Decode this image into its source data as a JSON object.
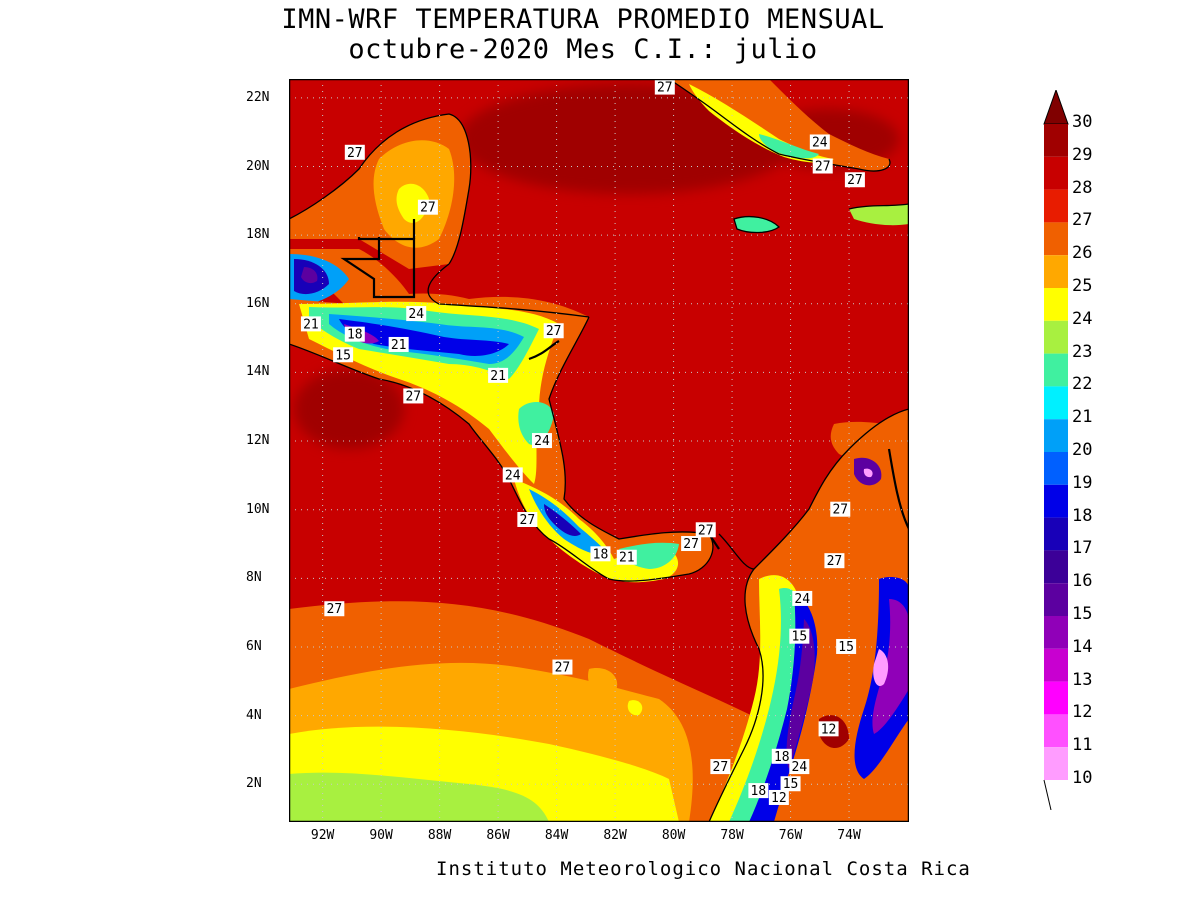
{
  "title_line1": "IMN-WRF  TEMPERATURA PROMEDIO MENSUAL",
  "title_line2": "octubre-2020 Mes C.I.: julio",
  "footer": "Instituto Meteorologico Nacional Costa Rica",
  "lat_labels": [
    "22N",
    "20N",
    "18N",
    "16N",
    "14N",
    "12N",
    "10N",
    "8N",
    "6N",
    "4N",
    "2N"
  ],
  "lon_labels": [
    "92W",
    "90W",
    "88W",
    "86W",
    "84W",
    "82W",
    "80W",
    "78W",
    "76W",
    "74W"
  ],
  "colorbar": {
    "levels": [
      "30",
      "29",
      "28",
      "27",
      "26",
      "25",
      "24",
      "23",
      "22",
      "21",
      "20",
      "19",
      "18",
      "17",
      "16",
      "15",
      "14",
      "13",
      "12",
      "11",
      "10"
    ],
    "colors": {
      "29": "#a00000",
      "28": "#c80000",
      "27": "#e81c00",
      "26": "#f06000",
      "25": "#ffa800",
      "24": "#ffff00",
      "23": "#a8f040",
      "22": "#40f0a0",
      "21": "#00f0ff",
      "20": "#00a0f8",
      "19": "#0060ff",
      "18": "#0000e8",
      "17": "#1800b8",
      "16": "#3c0098",
      "15": "#5c00a0",
      "14": "#9000b8",
      "13": "#c800d0",
      "12": "#ff00ff",
      "11": "#ff50ff",
      "10": "#ff9cff"
    }
  },
  "contour_labels": [
    {
      "text": "27",
      "lon": -80.3,
      "lat": 22.3
    },
    {
      "text": "24",
      "lon": -75.0,
      "lat": 20.7
    },
    {
      "text": "27",
      "lon": -74.9,
      "lat": 20.0
    },
    {
      "text": "27",
      "lon": -73.8,
      "lat": 19.6
    },
    {
      "text": "27",
      "lon": -90.9,
      "lat": 20.4
    },
    {
      "text": "27",
      "lon": -88.4,
      "lat": 18.8
    },
    {
      "text": "24",
      "lon": -88.8,
      "lat": 15.7
    },
    {
      "text": "21",
      "lon": -92.4,
      "lat": 15.4
    },
    {
      "text": "18",
      "lon": -90.9,
      "lat": 15.1
    },
    {
      "text": "21",
      "lon": -89.4,
      "lat": 14.8
    },
    {
      "text": "15",
      "lon": -91.3,
      "lat": 14.5
    },
    {
      "text": "27",
      "lon": -84.1,
      "lat": 15.2
    },
    {
      "text": "21",
      "lon": -86.0,
      "lat": 13.9
    },
    {
      "text": "27",
      "lon": -88.9,
      "lat": 13.3
    },
    {
      "text": "24",
      "lon": -84.5,
      "lat": 12.0
    },
    {
      "text": "24",
      "lon": -85.5,
      "lat": 11.0
    },
    {
      "text": "27",
      "lon": -85.0,
      "lat": 9.7
    },
    {
      "text": "18",
      "lon": -82.5,
      "lat": 8.7
    },
    {
      "text": "21",
      "lon": -81.6,
      "lat": 8.6
    },
    {
      "text": "27",
      "lon": -78.9,
      "lat": 9.4
    },
    {
      "text": "27",
      "lon": -79.4,
      "lat": 9.0
    },
    {
      "text": "27",
      "lon": -74.3,
      "lat": 10.0
    },
    {
      "text": "27",
      "lon": -74.5,
      "lat": 8.5
    },
    {
      "text": "24",
      "lon": -75.6,
      "lat": 7.4
    },
    {
      "text": "15",
      "lon": -75.7,
      "lat": 6.3
    },
    {
      "text": "15",
      "lon": -74.1,
      "lat": 6.0
    },
    {
      "text": "12",
      "lon": -74.7,
      "lat": 3.6
    },
    {
      "text": "18",
      "lon": -76.3,
      "lat": 2.8
    },
    {
      "text": "27",
      "lon": -78.4,
      "lat": 2.5
    },
    {
      "text": "24",
      "lon": -75.7,
      "lat": 2.5
    },
    {
      "text": "15",
      "lon": -76.0,
      "lat": 2.0
    },
    {
      "text": "18",
      "lon": -77.1,
      "lat": 1.8
    },
    {
      "text": "12",
      "lon": -76.4,
      "lat": 1.6
    },
    {
      "text": "27",
      "lon": -91.6,
      "lat": 7.1
    },
    {
      "text": "27",
      "lon": -83.8,
      "lat": 5.4
    }
  ]
}
